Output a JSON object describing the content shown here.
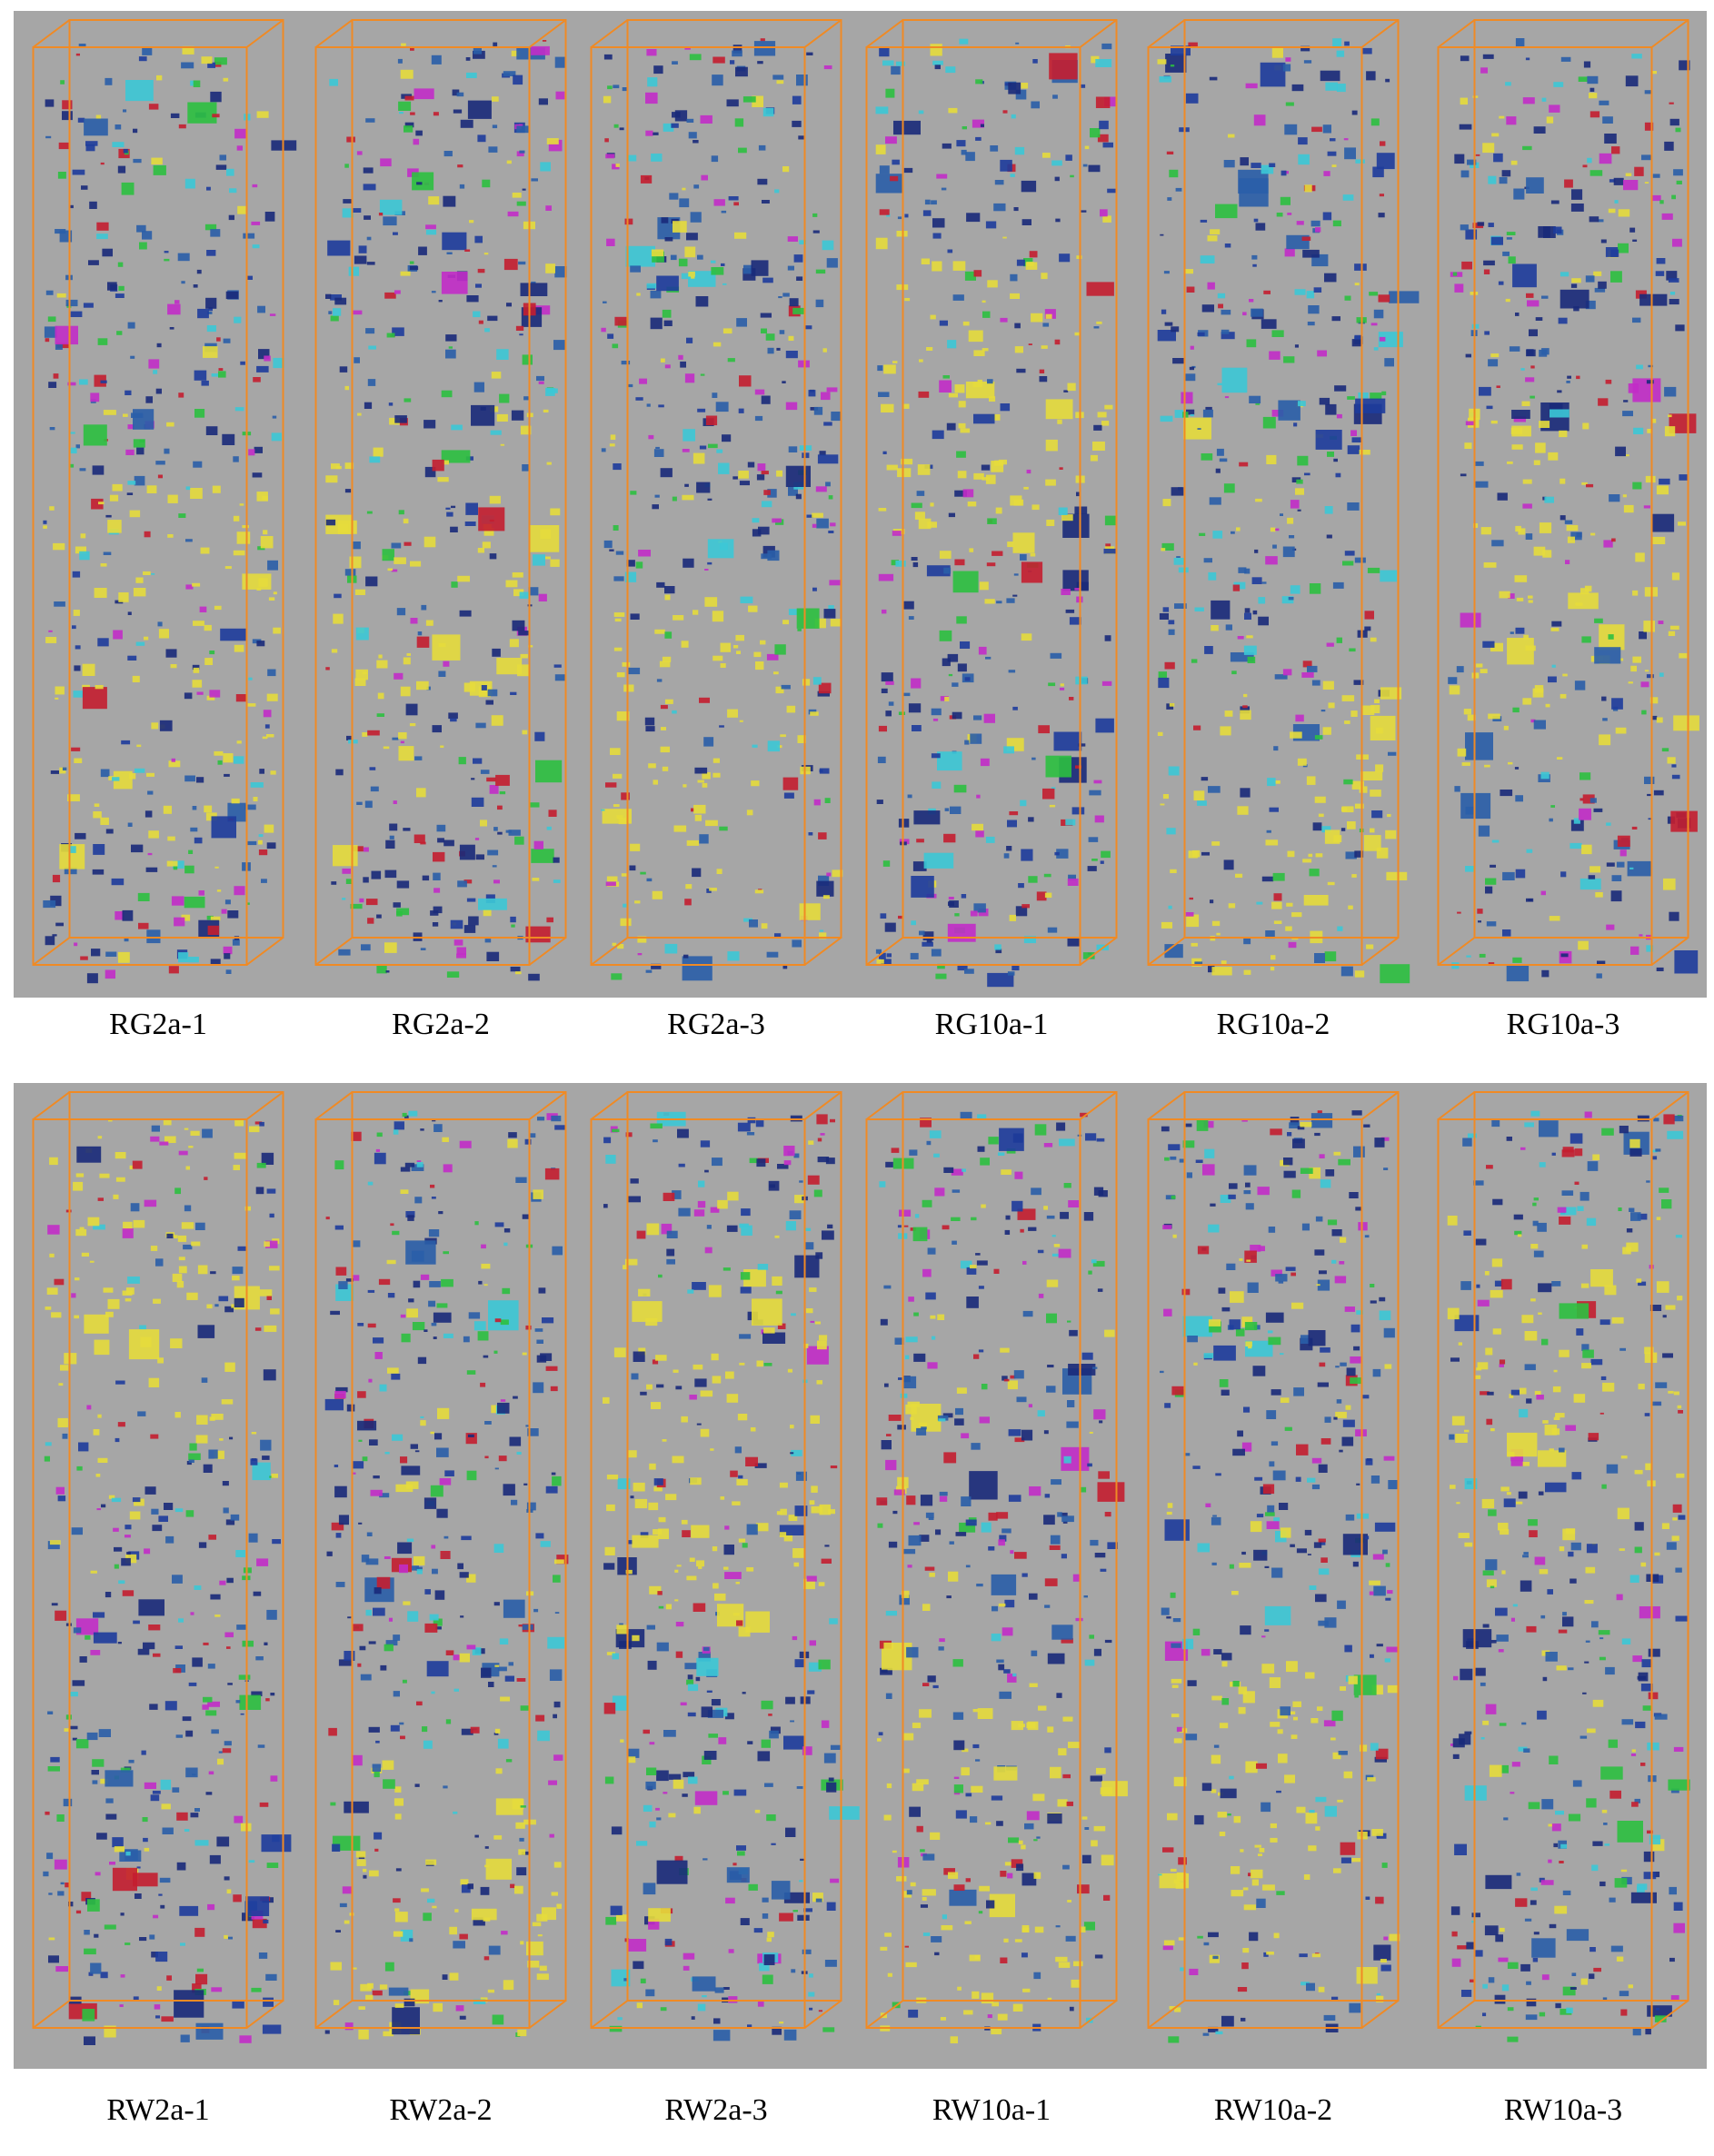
{
  "rows": [
    {
      "labels": [
        "RG2a-1",
        "RG2a-2",
        "RG2a-3",
        "RG10a-1",
        "RG10a-2",
        "RG10a-3"
      ]
    },
    {
      "labels": [
        "RW2a-1",
        "RW2a-2",
        "RW2a-3",
        "RW10a-1",
        "RW10a-2",
        "RW10a-3"
      ]
    }
  ]
}
